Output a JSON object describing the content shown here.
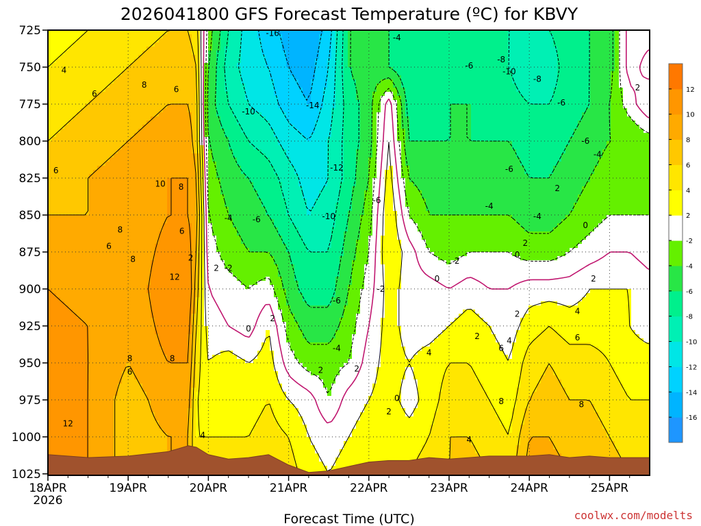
{
  "chart_data": {
    "type": "heatmap",
    "title": "2026041800 GFS Forecast Temperature (ºC) for KBVY",
    "xlabel": "Forecast Time (UTC)",
    "ylabel": "",
    "credit": "coolwx.com/modelts",
    "x_ticks": [
      {
        "label": "18APR",
        "sub": "2026",
        "day": 0
      },
      {
        "label": "19APR",
        "sub": "",
        "day": 1
      },
      {
        "label": "20APR",
        "sub": "",
        "day": 2
      },
      {
        "label": "21APR",
        "sub": "",
        "day": 3
      },
      {
        "label": "22APR",
        "sub": "",
        "day": 4
      },
      {
        "label": "23APR",
        "sub": "",
        "day": 5
      },
      {
        "label": "24APR",
        "sub": "",
        "day": 6
      },
      {
        "label": "25APR",
        "sub": "",
        "day": 7
      }
    ],
    "xlim_days": [
      0,
      7.5
    ],
    "y_ticks": [
      725,
      750,
      775,
      800,
      825,
      850,
      875,
      900,
      925,
      950,
      975,
      1000,
      1025
    ],
    "ylim_hpa": [
      725,
      1026
    ],
    "y_reversed": true,
    "grid": "dotted",
    "colorbar": {
      "levels": [
        -18,
        -16,
        -14,
        -12,
        -10,
        -8,
        -6,
        -4,
        -2,
        2,
        4,
        6,
        8,
        10,
        12,
        14
      ],
      "colors": [
        "#1e96ff",
        "#00b4ff",
        "#00d2ff",
        "#00e6e6",
        "#00f0b4",
        "#00f08c",
        "#28e646",
        "#64f000",
        "#ffffff",
        "#ffff00",
        "#ffe600",
        "#ffc800",
        "#ffaa00",
        "#ff9600",
        "#ff7800"
      ],
      "tick_labels": [
        -16,
        -14,
        -12,
        -10,
        -8,
        -6,
        -4,
        -2,
        2,
        4,
        6,
        8,
        10,
        12
      ]
    },
    "x_days": [
      0,
      0.5,
      1.0,
      1.5,
      1.75,
      1.85,
      2.0,
      2.25,
      2.5,
      2.75,
      3.0,
      3.25,
      3.5,
      3.75,
      4.0,
      4.25,
      4.5,
      4.75,
      5.0,
      5.25,
      5.5,
      5.75,
      6.0,
      6.25,
      6.5,
      6.75,
      7.0,
      7.25,
      7.5
    ],
    "levels_hpa": [
      725,
      750,
      775,
      800,
      825,
      850,
      875,
      900,
      925,
      950,
      975,
      1000,
      1025
    ],
    "temperature_c": [
      [
        3,
        4,
        5,
        6,
        6,
        5,
        -3,
        -8,
        -11,
        -13,
        -15,
        -16,
        -13,
        -6,
        -5,
        -6,
        -8,
        -7,
        -7,
        -7,
        -7,
        -8,
        -9,
        -8,
        -7,
        -6,
        -5,
        1,
        1
      ],
      [
        4,
        5,
        6,
        7,
        7,
        6,
        -4,
        -9,
        -11,
        -12,
        -14,
        -15,
        -12,
        -6,
        -5,
        -6,
        -8,
        -7,
        -7,
        -7,
        -7,
        -8,
        -10,
        -9,
        -7,
        -6,
        -5,
        1,
        -1
      ],
      [
        5,
        6,
        7,
        8,
        8,
        7,
        -5,
        -8,
        -10,
        -11,
        -13,
        -14,
        -11,
        -7,
        -5,
        1,
        -7,
        -7,
        -6,
        -6,
        -7,
        -7,
        -8,
        -8,
        -7,
        -6,
        -4,
        -1,
        2
      ],
      [
        6,
        7,
        8,
        9,
        9,
        7,
        -4,
        -6,
        -8,
        -9,
        -11,
        -12,
        -10,
        -7,
        -5,
        2,
        -6,
        -6,
        -6,
        -6,
        -6,
        -6,
        -7,
        -7,
        -6,
        -5,
        -4,
        -4,
        -3
      ],
      [
        7,
        8,
        9,
        10,
        10,
        8,
        -3,
        -5,
        -6,
        -7,
        -9,
        -11,
        -10,
        -7,
        -4,
        3,
        -4,
        -5,
        -5,
        -5,
        -5,
        -5,
        -6,
        -6,
        -5,
        -4,
        -3,
        -3,
        -3
      ],
      [
        8,
        8,
        8,
        10,
        10,
        9,
        -2,
        -4,
        -5,
        -6,
        -8,
        -10,
        -9,
        -6,
        -3,
        4,
        -2,
        -4,
        -4,
        -4,
        -4,
        -4,
        -5,
        -5,
        -4,
        -3,
        -2,
        -2,
        -2
      ],
      [
        9,
        8,
        8,
        11,
        11,
        8,
        -1,
        -3,
        -4,
        -4,
        -6,
        -8,
        -8,
        -5,
        -2,
        4,
        1,
        -2,
        -3,
        -2,
        -2,
        -2,
        -3,
        -3,
        -2,
        -1,
        0,
        0,
        -1
      ],
      [
        10,
        9,
        8,
        12,
        12,
        7,
        0,
        -1,
        -2,
        -1,
        -5,
        -7,
        -7,
        -4,
        -1,
        3,
        1,
        1,
        0,
        1,
        0,
        0,
        1,
        1,
        1,
        2,
        2,
        2,
        1
      ],
      [
        11,
        10,
        8,
        11,
        11,
        6,
        1,
        0,
        -1,
        2,
        -3,
        -5,
        -5,
        -3,
        0,
        3,
        1,
        1,
        2,
        3,
        2,
        1,
        3,
        4,
        3,
        3,
        3,
        2,
        1
      ],
      [
        12,
        10,
        8,
        10,
        10,
        5,
        2,
        3,
        2,
        3,
        -1,
        -3,
        -3,
        -2,
        1,
        3,
        2,
        3,
        4,
        4,
        3,
        2,
        5,
        6,
        5,
        5,
        4,
        3,
        3
      ],
      [
        12,
        10,
        7,
        9,
        9,
        4,
        3,
        4,
        3,
        4,
        2,
        1,
        -2,
        1,
        2,
        3,
        1,
        3,
        5,
        5,
        4,
        3,
        6,
        7,
        6,
        6,
        5,
        4,
        4
      ],
      [
        12,
        10,
        7,
        8,
        8,
        4,
        4,
        4,
        4,
        5,
        4,
        2,
        1,
        2,
        3,
        4,
        3,
        4,
        6,
        6,
        5,
        4,
        8,
        8,
        7,
        7,
        6,
        5,
        5
      ],
      [
        12,
        10,
        7,
        8,
        8,
        4,
        4,
        4,
        4,
        6,
        5,
        3,
        2,
        3,
        4,
        4,
        4,
        5,
        6,
        7,
        6,
        5,
        9,
        9,
        8,
        8,
        7,
        6,
        6
      ]
    ],
    "surface_hpa": [
      1012,
      1014,
      1013,
      1010,
      1006,
      1007,
      1012,
      1015,
      1014,
      1012,
      1019,
      1024,
      1023,
      1020,
      1017,
      1016,
      1016,
      1014,
      1015,
      1014,
      1013,
      1013,
      1013,
      1012,
      1014,
      1013,
      1014,
      1014,
      1014
    ],
    "contour_labels": [
      {
        "text": "4",
        "day": 0.2,
        "p": 752
      },
      {
        "text": "6",
        "day": 0.58,
        "p": 768
      },
      {
        "text": "8",
        "day": 1.2,
        "p": 762
      },
      {
        "text": "6",
        "day": 1.6,
        "p": 765
      },
      {
        "text": "6",
        "day": 0.1,
        "p": 820
      },
      {
        "text": "10",
        "day": 1.4,
        "p": 829
      },
      {
        "text": "8",
        "day": 1.66,
        "p": 831
      },
      {
        "text": "8",
        "day": 0.9,
        "p": 860
      },
      {
        "text": "6",
        "day": 0.76,
        "p": 871
      },
      {
        "text": "8",
        "day": 1.06,
        "p": 880
      },
      {
        "text": "6",
        "day": 1.67,
        "p": 861
      },
      {
        "text": "2",
        "day": 1.78,
        "p": 879
      },
      {
        "text": "12",
        "day": 1.58,
        "p": 892
      },
      {
        "text": "8",
        "day": 1.02,
        "p": 947
      },
      {
        "text": "6",
        "day": 1.02,
        "p": 956
      },
      {
        "text": "8",
        "day": 1.55,
        "p": 947
      },
      {
        "text": "12",
        "day": 0.25,
        "p": 991
      },
      {
        "text": "4",
        "day": 1.93,
        "p": 999
      },
      {
        "text": "-16",
        "day": 2.8,
        "p": 727
      },
      {
        "text": "-10",
        "day": 2.5,
        "p": 780
      },
      {
        "text": "-14",
        "day": 3.3,
        "p": 776
      },
      {
        "text": "-12",
        "day": 3.6,
        "p": 818
      },
      {
        "text": "-10",
        "day": 3.5,
        "p": 851
      },
      {
        "text": "-4",
        "day": 2.25,
        "p": 852
      },
      {
        "text": "-6",
        "day": 2.6,
        "p": 853
      },
      {
        "text": "-2",
        "day": 2.25,
        "p": 886
      },
      {
        "text": "2",
        "day": 2.1,
        "p": 886
      },
      {
        "text": "0",
        "day": 2.5,
        "p": 927
      },
      {
        "text": "2",
        "day": 2.8,
        "p": 920
      },
      {
        "text": "-6",
        "day": 3.6,
        "p": 908
      },
      {
        "text": "-4",
        "day": 3.6,
        "p": 940
      },
      {
        "text": "2",
        "day": 3.4,
        "p": 955
      },
      {
        "text": "2",
        "day": 3.85,
        "p": 954
      },
      {
        "text": "-6",
        "day": 4.1,
        "p": 840
      },
      {
        "text": "-2",
        "day": 4.15,
        "p": 900
      },
      {
        "text": "0",
        "day": 4.35,
        "p": 974
      },
      {
        "text": "2",
        "day": 4.25,
        "p": 983
      },
      {
        "text": "-4",
        "day": 4.35,
        "p": 730
      },
      {
        "text": "-6",
        "day": 5.25,
        "p": 749
      },
      {
        "text": "-8",
        "day": 5.65,
        "p": 745
      },
      {
        "text": "-10",
        "day": 5.75,
        "p": 753
      },
      {
        "text": "-8",
        "day": 6.1,
        "p": 758
      },
      {
        "text": "-6",
        "day": 6.4,
        "p": 774
      },
      {
        "text": "-6",
        "day": 6.7,
        "p": 800
      },
      {
        "text": "-6",
        "day": 5.75,
        "p": 819
      },
      {
        "text": "-4",
        "day": 6.85,
        "p": 809
      },
      {
        "text": "2",
        "day": 7.35,
        "p": 764
      },
      {
        "text": "2",
        "day": 6.35,
        "p": 832
      },
      {
        "text": "-4",
        "day": 5.5,
        "p": 844
      },
      {
        "text": "-4",
        "day": 6.1,
        "p": 851
      },
      {
        "text": "0",
        "day": 6.7,
        "p": 857
      },
      {
        "text": "2",
        "day": 5.95,
        "p": 869
      },
      {
        "text": "0",
        "day": 5.85,
        "p": 877
      },
      {
        "text": "2",
        "day": 5.1,
        "p": 881
      },
      {
        "text": "0",
        "day": 4.85,
        "p": 893
      },
      {
        "text": "2",
        "day": 6.8,
        "p": 893
      },
      {
        "text": "2",
        "day": 5.85,
        "p": 917
      },
      {
        "text": "4",
        "day": 6.6,
        "p": 915
      },
      {
        "text": "2",
        "day": 5.35,
        "p": 932
      },
      {
        "text": "4",
        "day": 5.75,
        "p": 935
      },
      {
        "text": "6",
        "day": 5.65,
        "p": 940
      },
      {
        "text": "6",
        "day": 6.6,
        "p": 933
      },
      {
        "text": "4",
        "day": 4.75,
        "p": 943
      },
      {
        "text": "8",
        "day": 5.65,
        "p": 976
      },
      {
        "text": "8",
        "day": 6.65,
        "p": 978
      },
      {
        "text": "4",
        "day": 5.25,
        "p": 1002
      }
    ]
  }
}
